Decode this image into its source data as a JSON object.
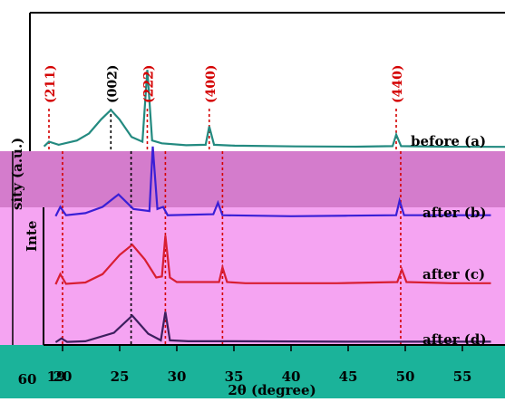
{
  "chart_data": {
    "type": "line",
    "xlabel": "2θ (degree)",
    "ylabel": "Intensity (a.u.)",
    "ylabel_visible": "sity (a.u.)",
    "ylabel_lower_fragment": "Inte",
    "left_axis_fragment_tick": "60",
    "x_ticks": [
      20,
      25,
      30,
      35,
      40,
      45,
      50,
      55
    ],
    "xlim": [
      19.3,
      57.5
    ],
    "x_ticks_fragment_start": 19,
    "peak_labels": [
      {
        "label": "(211)",
        "x": 19.7,
        "color": "#d40000"
      },
      {
        "label": "(002)",
        "x": 24.8,
        "color": "#000000"
      },
      {
        "label": "(222)",
        "x": 27.8,
        "color": "#d40000"
      },
      {
        "label": "(400)",
        "x": 32.9,
        "color": "#d40000"
      },
      {
        "label": "(440)",
        "x": 48.3,
        "color": "#d40000"
      }
    ],
    "series": [
      {
        "name": "before (a)",
        "color": "#238a80",
        "points": [
          [
            19.3,
            0.05
          ],
          [
            19.7,
            0.25
          ],
          [
            20.5,
            0.12
          ],
          [
            22,
            0.3
          ],
          [
            23,
            0.6
          ],
          [
            24,
            1.2
          ],
          [
            24.8,
            1.6
          ],
          [
            25.5,
            1.2
          ],
          [
            26.5,
            0.45
          ],
          [
            27.4,
            0.25
          ],
          [
            27.8,
            3.3
          ],
          [
            28.2,
            0.3
          ],
          [
            29,
            0.18
          ],
          [
            31,
            0.1
          ],
          [
            32.6,
            0.12
          ],
          [
            32.9,
            0.9
          ],
          [
            33.3,
            0.12
          ],
          [
            35,
            0.08
          ],
          [
            40,
            0.05
          ],
          [
            45,
            0.04
          ],
          [
            48,
            0.06
          ],
          [
            48.3,
            0.55
          ],
          [
            48.7,
            0.06
          ],
          [
            52,
            0.04
          ],
          [
            57.5,
            0.03
          ]
        ]
      },
      {
        "name": "after (b)",
        "color": "#3a1fd6",
        "points": [
          [
            19.4,
            0.05
          ],
          [
            19.8,
            0.5
          ],
          [
            20.3,
            0.1
          ],
          [
            22,
            0.2
          ],
          [
            23.5,
            0.5
          ],
          [
            24.9,
            1.1
          ],
          [
            26.2,
            0.4
          ],
          [
            27.6,
            0.3
          ],
          [
            27.9,
            3.4
          ],
          [
            28.3,
            0.4
          ],
          [
            28.8,
            0.5
          ],
          [
            29.2,
            0.1
          ],
          [
            33.2,
            0.15
          ],
          [
            33.6,
            0.7
          ],
          [
            34,
            0.1
          ],
          [
            40,
            0.05
          ],
          [
            45,
            0.08
          ],
          [
            49.2,
            0.1
          ],
          [
            49.5,
            0.8
          ],
          [
            49.9,
            0.1
          ],
          [
            54,
            0.1
          ],
          [
            57.5,
            0.1
          ]
        ]
      },
      {
        "name": "after (c)",
        "color": "#d81e32",
        "points": [
          [
            19.4,
            0.0
          ],
          [
            19.8,
            0.45
          ],
          [
            20.3,
            0.02
          ],
          [
            22,
            0.08
          ],
          [
            23.5,
            0.45
          ],
          [
            25,
            1.3
          ],
          [
            26.1,
            1.75
          ],
          [
            27.2,
            1.1
          ],
          [
            28.2,
            0.3
          ],
          [
            28.7,
            0.35
          ],
          [
            29.0,
            2.15
          ],
          [
            29.4,
            0.3
          ],
          [
            30,
            0.1
          ],
          [
            33.7,
            0.1
          ],
          [
            34.0,
            0.75
          ],
          [
            34.4,
            0.1
          ],
          [
            36,
            0.05
          ],
          [
            44,
            0.05
          ],
          [
            49.3,
            0.1
          ],
          [
            49.7,
            0.65
          ],
          [
            50.1,
            0.1
          ],
          [
            54,
            0.05
          ],
          [
            57.5,
            0.05
          ]
        ]
      },
      {
        "name": "after (d)",
        "color": "#3d1f5e",
        "points": [
          [
            19.4,
            0.0
          ],
          [
            19.9,
            0.2
          ],
          [
            20.4,
            0.02
          ],
          [
            22,
            0.05
          ],
          [
            24.5,
            0.5
          ],
          [
            26.1,
            1.4
          ],
          [
            27.5,
            0.45
          ],
          [
            28.6,
            0.1
          ],
          [
            29.0,
            1.6
          ],
          [
            29.4,
            0.1
          ],
          [
            31,
            0.05
          ],
          [
            35,
            0.05
          ],
          [
            45,
            0.03
          ],
          [
            57.5,
            0.03
          ]
        ]
      }
    ]
  }
}
